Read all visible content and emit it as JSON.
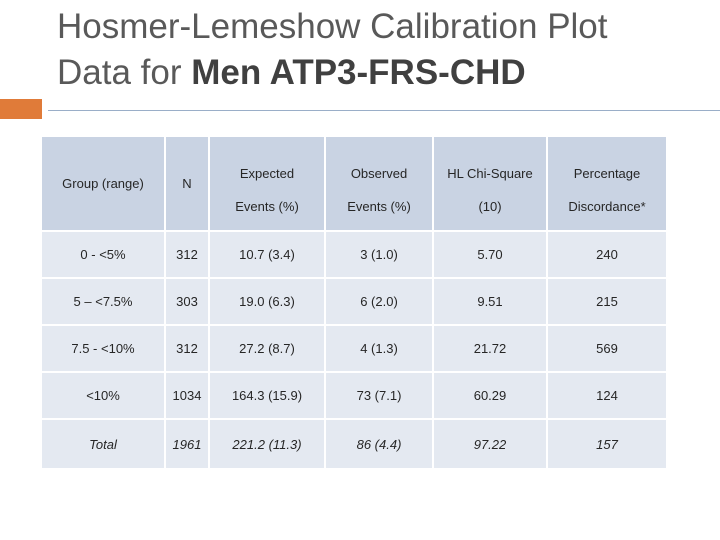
{
  "slide": {
    "title_line1": "Hosmer-Lemeshow Calibration Plot",
    "title_line2_prefix": "Data for ",
    "title_line2_bold": "Men ATP3-FRS-CHD"
  },
  "table": {
    "headers": {
      "group": "Group (range)",
      "n": "N",
      "expected_line1": "Expected",
      "expected_line2": "Events (%)",
      "observed_line1": "Observed",
      "observed_line2": "Events (%)",
      "hl_line1": "HL Chi-Square",
      "hl_line2": "(10)",
      "pct_line1": "Percentage",
      "pct_line2": "Discordance*"
    },
    "rows": [
      {
        "group": "0 - <5%",
        "n": "312",
        "expected": "10.7 (3.4)",
        "observed": "3 (1.0)",
        "hl": "5.70",
        "pct": "240"
      },
      {
        "group": "5 – <7.5%",
        "n": "303",
        "expected": "19.0 (6.3)",
        "observed": "6 (2.0)",
        "hl": "9.51",
        "pct": "215"
      },
      {
        "group": "7.5 - <10%",
        "n": "312",
        "expected": "27.2 (8.7)",
        "observed": "4 (1.3)",
        "hl": "21.72",
        "pct": "569"
      },
      {
        "group": "<10%",
        "n": "1034",
        "expected": "164.3 (15.9)",
        "observed": "73 (7.1)",
        "hl": "60.29",
        "pct": "124"
      },
      {
        "group": "Total",
        "n": "1961",
        "expected": "221.2 (11.3)",
        "observed": "86 (4.4)",
        "hl": "97.22",
        "pct": "157"
      }
    ]
  },
  "colors": {
    "accent_orange": "#e07b39",
    "header_fill": "#c9d3e3",
    "body_fill": "#e4e9f1",
    "rule_blue": "#9aaec8"
  }
}
